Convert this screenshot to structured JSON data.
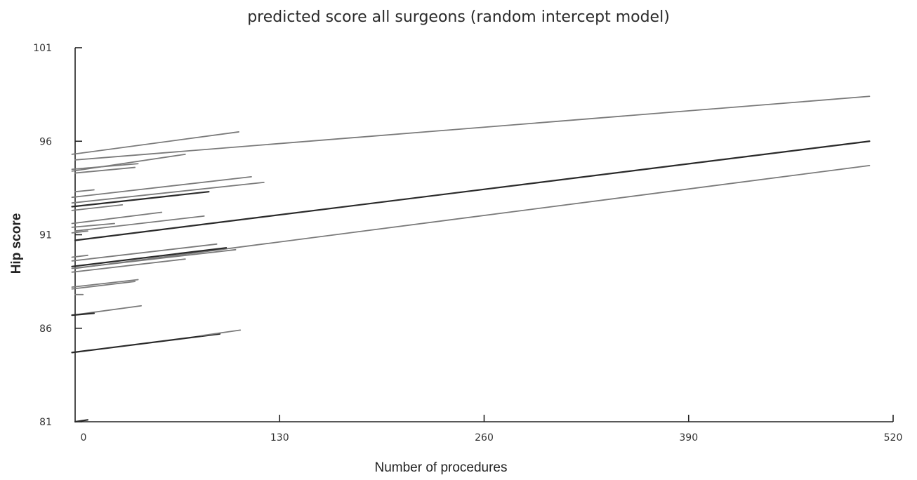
{
  "chart_data": {
    "type": "line",
    "title": "predicted score all surgeons (random intercept model)",
    "xlabel": "Number of procedures",
    "ylabel": "Hip score",
    "xlim": [
      0,
      520
    ],
    "ylim": [
      81,
      101
    ],
    "xticks": [
      0,
      130,
      260,
      390,
      520
    ],
    "yticks": [
      81,
      86,
      91,
      96,
      101
    ],
    "grid": false,
    "legend": "none",
    "colors": {
      "axis": "#222222",
      "line_gray": "#7a7a7a",
      "line_dark": "#2a2a2a"
    },
    "series": [
      {
        "x": [
          0,
          505
        ],
        "y": [
          95.0,
          98.4
        ],
        "shade": "gray"
      },
      {
        "x": [
          0,
          505
        ],
        "y": [
          90.7,
          96.0
        ],
        "shade": "dark"
      },
      {
        "x": [
          0,
          505
        ],
        "y": [
          89.2,
          94.7
        ],
        "shade": "gray"
      },
      {
        "x": [
          -2,
          104
        ],
        "y": [
          95.3,
          96.5
        ],
        "shade": "gray"
      },
      {
        "x": [
          -2,
          70
        ],
        "y": [
          94.4,
          95.3
        ],
        "shade": "gray"
      },
      {
        "x": [
          -2,
          40
        ],
        "y": [
          94.5,
          94.8
        ],
        "shade": "gray"
      },
      {
        "x": [
          0,
          38
        ],
        "y": [
          94.3,
          94.6
        ],
        "shade": "gray"
      },
      {
        "x": [
          -2,
          112
        ],
        "y": [
          93.0,
          94.1
        ],
        "shade": "gray"
      },
      {
        "x": [
          -2,
          120
        ],
        "y": [
          92.7,
          93.8
        ],
        "shade": "gray"
      },
      {
        "x": [
          0,
          12
        ],
        "y": [
          93.3,
          93.4
        ],
        "shade": "gray"
      },
      {
        "x": [
          -2,
          85
        ],
        "y": [
          92.5,
          93.3
        ],
        "shade": "dark"
      },
      {
        "x": [
          -2,
          30
        ],
        "y": [
          92.3,
          92.6
        ],
        "shade": "gray"
      },
      {
        "x": [
          -2,
          55
        ],
        "y": [
          91.6,
          92.2
        ],
        "shade": "gray"
      },
      {
        "x": [
          0,
          82
        ],
        "y": [
          91.2,
          92.0
        ],
        "shade": "gray"
      },
      {
        "x": [
          -2,
          25
        ],
        "y": [
          91.4,
          91.6
        ],
        "shade": "gray"
      },
      {
        "x": [
          -2,
          8
        ],
        "y": [
          91.1,
          91.2
        ],
        "shade": "gray"
      },
      {
        "x": [
          -2,
          90
        ],
        "y": [
          89.6,
          90.5
        ],
        "shade": "gray"
      },
      {
        "x": [
          -2,
          102
        ],
        "y": [
          89.2,
          90.2
        ],
        "shade": "gray"
      },
      {
        "x": [
          -2,
          96
        ],
        "y": [
          89.3,
          90.3
        ],
        "shade": "dark"
      },
      {
        "x": [
          -2,
          70
        ],
        "y": [
          89.0,
          89.7
        ],
        "shade": "gray"
      },
      {
        "x": [
          -2,
          8
        ],
        "y": [
          89.8,
          89.9
        ],
        "shade": "gray"
      },
      {
        "x": [
          -2,
          40
        ],
        "y": [
          88.2,
          88.6
        ],
        "shade": "gray"
      },
      {
        "x": [
          -2,
          38
        ],
        "y": [
          88.1,
          88.5
        ],
        "shade": "gray"
      },
      {
        "x": [
          0,
          5
        ],
        "y": [
          87.8,
          87.8
        ],
        "shade": "gray"
      },
      {
        "x": [
          -2,
          42
        ],
        "y": [
          86.7,
          87.2
        ],
        "shade": "gray"
      },
      {
        "x": [
          -2,
          12
        ],
        "y": [
          86.7,
          86.8
        ],
        "shade": "dark"
      },
      {
        "x": [
          -2,
          92
        ],
        "y": [
          84.7,
          85.7
        ],
        "shade": "dark"
      },
      {
        "x": [
          80,
          105
        ],
        "y": [
          85.6,
          85.9
        ],
        "shade": "gray"
      },
      {
        "x": [
          0,
          8
        ],
        "y": [
          81.0,
          81.1
        ],
        "shade": "dark"
      }
    ]
  }
}
